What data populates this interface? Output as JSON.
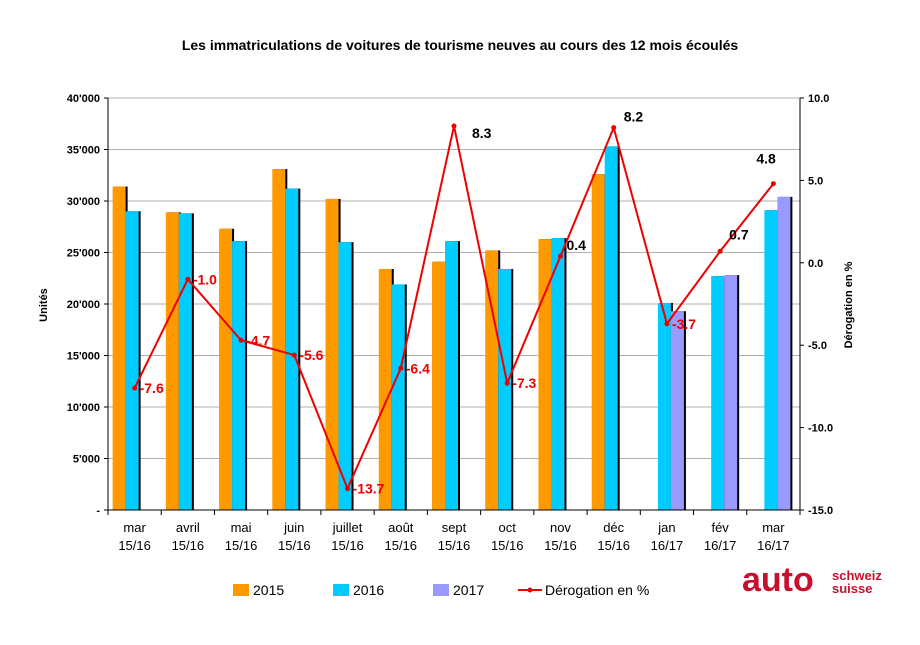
{
  "chart_data": {
    "type": "bar",
    "title": "Les immatriculations de voitures de tourisme neuves au cours des 12 mois écoulés",
    "ylabel": "Unités",
    "y2label": "Dérogation en %",
    "ylim": [
      0,
      40000
    ],
    "y2lim": [
      -15,
      10
    ],
    "yticks": [
      "-",
      "5'000",
      "10'000",
      "15'000",
      "20'000",
      "25'000",
      "30'000",
      "35'000",
      "40'000"
    ],
    "y2ticks": [
      "-15.0",
      "-10.0",
      "-5.0",
      "0.0",
      "5.0",
      "10.0"
    ],
    "categories": [
      [
        "mar",
        "15/16"
      ],
      [
        "avril",
        "15/16"
      ],
      [
        "mai",
        "15/16"
      ],
      [
        "juin",
        "15/16"
      ],
      [
        "juillet",
        "15/16"
      ],
      [
        "août",
        "15/16"
      ],
      [
        "sept",
        "15/16"
      ],
      [
        "oct",
        "15/16"
      ],
      [
        "nov",
        "15/16"
      ],
      [
        "déc",
        "15/16"
      ],
      [
        "jan",
        "16/17"
      ],
      [
        "fév",
        "16/17"
      ],
      [
        "mar",
        "16/17"
      ]
    ],
    "series": [
      {
        "name": "2015",
        "color": "#ff9900",
        "values": [
          31400,
          28900,
          27300,
          33100,
          30200,
          23400,
          24100,
          25200,
          26300,
          32600,
          null,
          null,
          null
        ]
      },
      {
        "name": "2016",
        "color": "#00ccff",
        "values": [
          29000,
          28800,
          26100,
          31200,
          26000,
          21900,
          26100,
          23400,
          26400,
          35300,
          20100,
          22700,
          29100
        ]
      },
      {
        "name": "2017",
        "color": "#9999ff",
        "values": [
          null,
          null,
          null,
          null,
          null,
          null,
          null,
          null,
          null,
          null,
          19300,
          22800,
          30400
        ]
      }
    ],
    "line": {
      "name": "Dérogation en %",
      "color": "#ee0000",
      "values": [
        -7.6,
        -1.0,
        -4.7,
        -5.6,
        -13.7,
        -6.4,
        8.3,
        -7.3,
        0.4,
        8.2,
        -3.7,
        0.7,
        4.8
      ],
      "labels": [
        "-7.6",
        "-1.0",
        "-4.7",
        "-5.6",
        "-13.7",
        "-6.4",
        "8.3",
        "-7.3",
        "0.4",
        "8.2",
        "-3.7",
        "0.7",
        "4.8"
      ]
    },
    "legend": "bottom",
    "grid": true
  },
  "logo": {
    "text": "auto",
    "line1": "schweiz",
    "line2": "suisse",
    "color": "#c8102e"
  }
}
